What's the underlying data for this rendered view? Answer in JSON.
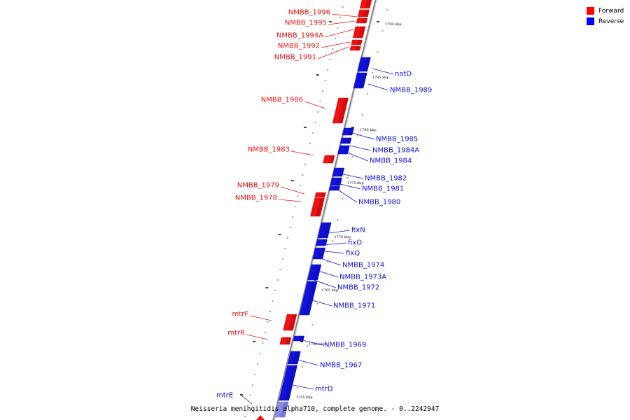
{
  "legend": {
    "forward_label": "Forward",
    "reverse_label": "Reverse",
    "forward_color": "#ff0000",
    "reverse_color": "#0000ff"
  },
  "colors": {
    "forward": "#ee1111",
    "reverse": "#1111dd",
    "axis": "#999999"
  },
  "caption": "Neisseria meningitidis alpha710, complete genome. - 0..2242947",
  "scale_labels": [
    "1790 kbp",
    "1785 kbp",
    "1780 kbp",
    "1775 kbp",
    "1770 kbp",
    "1765 kbp",
    "1760 kbp",
    "1755 kbp"
  ],
  "genes": {
    "forward": [
      "NMBB_1996",
      "NMBB_1995",
      "NMBB_1994A",
      "NMBB_1992",
      "NMBB_1991",
      "NMBB_1986",
      "NMBB_1983",
      "NMBB_1979",
      "NMBB_1978",
      "mtrF",
      "mtrR"
    ],
    "reverse": [
      "natD",
      "NMBB_1989",
      "NMBB_1985",
      "NMBB_1984A",
      "NMBB_1984",
      "NMBB_1982",
      "NMBB_1981",
      "NMBB_1980",
      "fixN",
      "fixO",
      "fixQ",
      "NMBB_1974",
      "NMBB_1973A",
      "NMBB_1972",
      "NMBB_1971",
      "NMBB_1969",
      "NMBB_1967",
      "mtrD",
      "mtrE"
    ]
  }
}
